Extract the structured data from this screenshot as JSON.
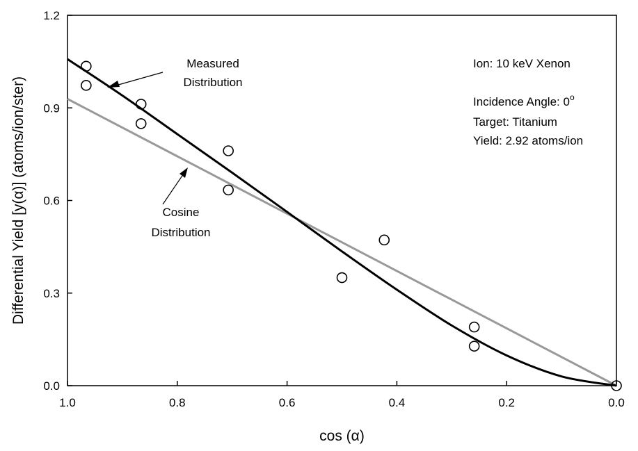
{
  "chart_data": {
    "type": "scatter",
    "title": "",
    "xlabel": "cos (α)",
    "ylabel": "Differential Yield [y(α)] (atoms/ion/ster)",
    "xlim": [
      1.0,
      0.0
    ],
    "ylim": [
      0.0,
      1.2
    ],
    "x_reversed": true,
    "grid": false,
    "xticks": [
      "1.0",
      "0.8",
      "0.6",
      "0.4",
      "0.2",
      "0.0"
    ],
    "xtick_values": [
      1.0,
      0.8,
      0.6,
      0.4,
      0.2,
      0.0
    ],
    "yticks": [
      "0.0",
      "0.3",
      "0.6",
      "0.9",
      "1.2"
    ],
    "ytick_values": [
      0.0,
      0.3,
      0.6,
      0.9,
      1.2
    ],
    "series": [
      {
        "kind": "markers",
        "marker": "open-circle",
        "color": "#000000",
        "points": [
          [
            0.966,
            1.035
          ],
          [
            0.966,
            0.973
          ],
          [
            0.866,
            0.912
          ],
          [
            0.866,
            0.849
          ],
          [
            0.707,
            0.761
          ],
          [
            0.707,
            0.634
          ],
          [
            0.5,
            0.35
          ],
          [
            0.423,
            0.472
          ],
          [
            0.259,
            0.19
          ],
          [
            0.259,
            0.128
          ],
          [
            0.0,
            0.0
          ]
        ]
      },
      {
        "name": "Measured Distribution",
        "kind": "line",
        "color": "#000000",
        "x": [
          1.0,
          0.9,
          0.8,
          0.7,
          0.6,
          0.5,
          0.4,
          0.3,
          0.2,
          0.1,
          0.0
        ],
        "values": [
          1.058,
          0.94,
          0.815,
          0.69,
          0.563,
          0.435,
          0.311,
          0.195,
          0.098,
          0.03,
          0.0
        ]
      },
      {
        "name": "Cosine Distribution",
        "kind": "line",
        "color": "#999999",
        "x": [
          1.0,
          0.0
        ],
        "values": [
          0.929,
          0.0
        ]
      }
    ],
    "annotations": [
      {
        "lines": [
          "Measured",
          "Distribution"
        ],
        "arrow_to": [
          0.944,
          0.97
        ]
      },
      {
        "lines": [
          "Cosine",
          "Distribution"
        ],
        "arrow_to": [
          0.79,
          0.74
        ]
      }
    ],
    "info": [
      "Ion: 10 keV Xenon",
      "Incidence Angle: 0",
      "Target: Titanium",
      "Yield: 2.92 atoms/ion"
    ],
    "info_superscript": "o"
  }
}
